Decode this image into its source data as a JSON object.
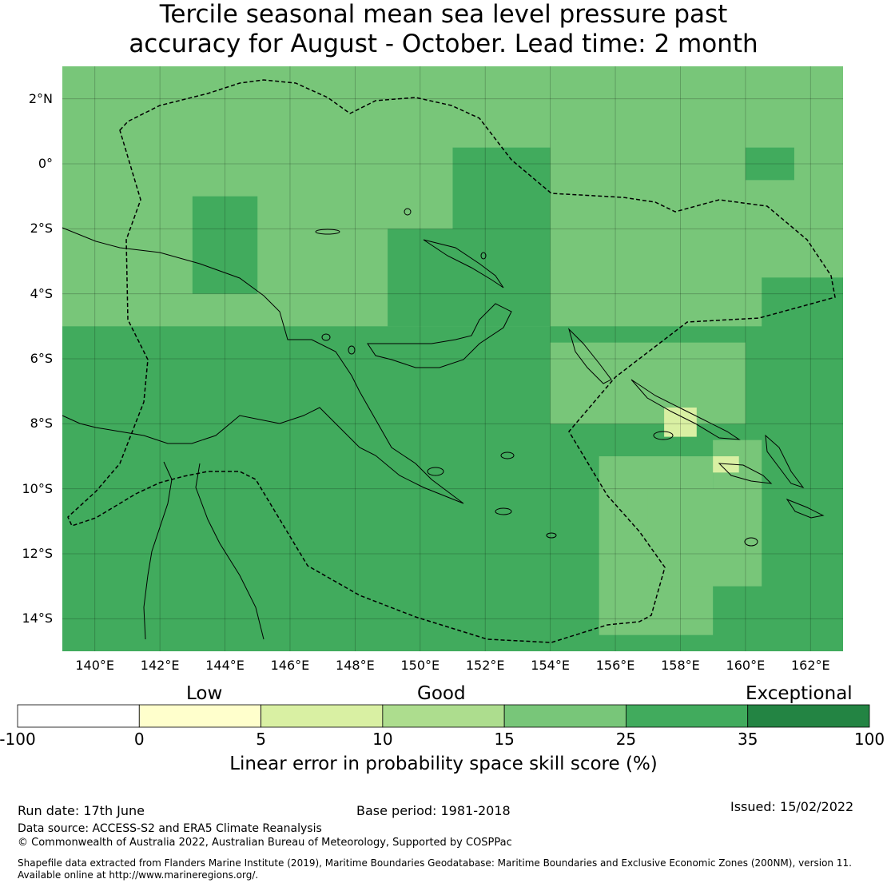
{
  "title_line1": "Tercile seasonal mean sea level pressure past",
  "title_line2": "accuracy for August - October. Lead time: 2 month",
  "map": {
    "lon_range": [
      139,
      163
    ],
    "lat_range": [
      -15,
      3
    ],
    "lon_ticks": [
      "140°E",
      "142°E",
      "144°E",
      "146°E",
      "148°E",
      "150°E",
      "152°E",
      "154°E",
      "156°E",
      "158°E",
      "160°E",
      "162°E"
    ],
    "lat_ticks": [
      "2°N",
      "0°",
      "2°S",
      "4°S",
      "6°S",
      "8°S",
      "10°S",
      "12°S",
      "14°S"
    ],
    "grid": true,
    "dark_regions": [
      {
        "lon": [
          139,
          163
        ],
        "lat": [
          -15,
          -5
        ]
      },
      {
        "lon": [
          151,
          154
        ],
        "lat": [
          -3,
          0.5
        ]
      },
      {
        "lon": [
          149,
          154
        ],
        "lat": [
          -5,
          -2
        ]
      },
      {
        "lon": [
          160,
          161.5
        ],
        "lat": [
          -0.5,
          0.5
        ]
      },
      {
        "lon": [
          143,
          145
        ],
        "lat": [
          -4,
          -1
        ]
      },
      {
        "lon": [
          160.5,
          163
        ],
        "lat": [
          -6,
          -3.5
        ]
      }
    ],
    "light_regions": [
      {
        "lon": [
          154,
          160
        ],
        "lat": [
          -8,
          -5.5
        ]
      },
      {
        "lon": [
          155.5,
          159
        ],
        "lat": [
          -14.5,
          -9
        ]
      },
      {
        "lon": [
          159,
          160.5
        ],
        "lat": [
          -11,
          -8.5
        ]
      },
      {
        "lon": [
          157,
          160.5
        ],
        "lat": [
          -13,
          -10
        ]
      }
    ],
    "pale_regions": [
      {
        "lon": [
          157.5,
          158.5
        ],
        "lat": [
          -8.4,
          -7.5
        ]
      },
      {
        "lon": [
          159,
          159.8
        ],
        "lat": [
          -9.5,
          -9
        ]
      }
    ]
  },
  "colorbar": {
    "categories": [
      "Low",
      "Good",
      "Exceptional"
    ],
    "ticks": [
      "-100",
      "0",
      "5",
      "10",
      "15",
      "25",
      "35",
      "100"
    ],
    "colors": [
      "#ffffff",
      "#ffffcc",
      "#d9f0a3",
      "#addd8e",
      "#78c679",
      "#41ab5d",
      "#238443"
    ],
    "label": "Linear error in probability space skill score (%)"
  },
  "footer": {
    "run_date": "Run date: 17th June",
    "base_period": "Base period: 1981-2018",
    "issued": "Issued: 15/02/2022",
    "data_source": "Data source: ACCESS-S2 and ERA5 Climate Reanalysis",
    "copyright": "© Commonwealth of Australia 2022, Australian Bureau of Meteorology, Supported by COSPPac",
    "shapefile_line1": "Shapefile data extracted from Flanders Marine Institute (2019), Maritime Boundaries Geodatabase: Maritime Boundaries and Exclusive Economic Zones (200NM), version 11.",
    "shapefile_line2": "Available online at http://www.marineregions.org/."
  }
}
